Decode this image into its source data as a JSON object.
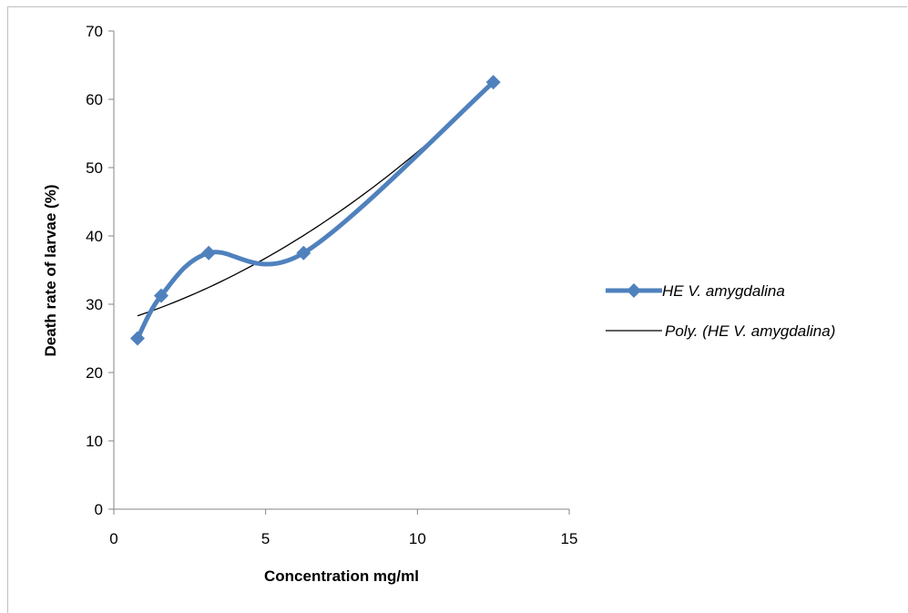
{
  "chart_data": {
    "type": "line",
    "title": "",
    "xlabel": "Concentration mg/ml",
    "ylabel": "Death rate of larvae (%)",
    "xlim": [
      0,
      15
    ],
    "ylim": [
      0,
      70
    ],
    "x_ticks": [
      0,
      5,
      10,
      15
    ],
    "y_ticks": [
      0,
      10,
      20,
      30,
      40,
      50,
      60,
      70
    ],
    "grid": false,
    "legend_position": "right",
    "series": [
      {
        "name": "HE V. amygdalina",
        "kind": "smoothed-line-with-diamond-markers",
        "color": "#4f81bd",
        "x": [
          0.78,
          1.56,
          3.125,
          6.25,
          12.5
        ],
        "y": [
          25,
          31.25,
          37.5,
          37.5,
          62.5
        ]
      },
      {
        "name": "Poly. (HE V. amygdalina)",
        "kind": "polynomial-trendline",
        "color": "#000000",
        "x": [
          0.78,
          12.5
        ],
        "y": [
          28.3,
          62.3
        ]
      }
    ]
  }
}
